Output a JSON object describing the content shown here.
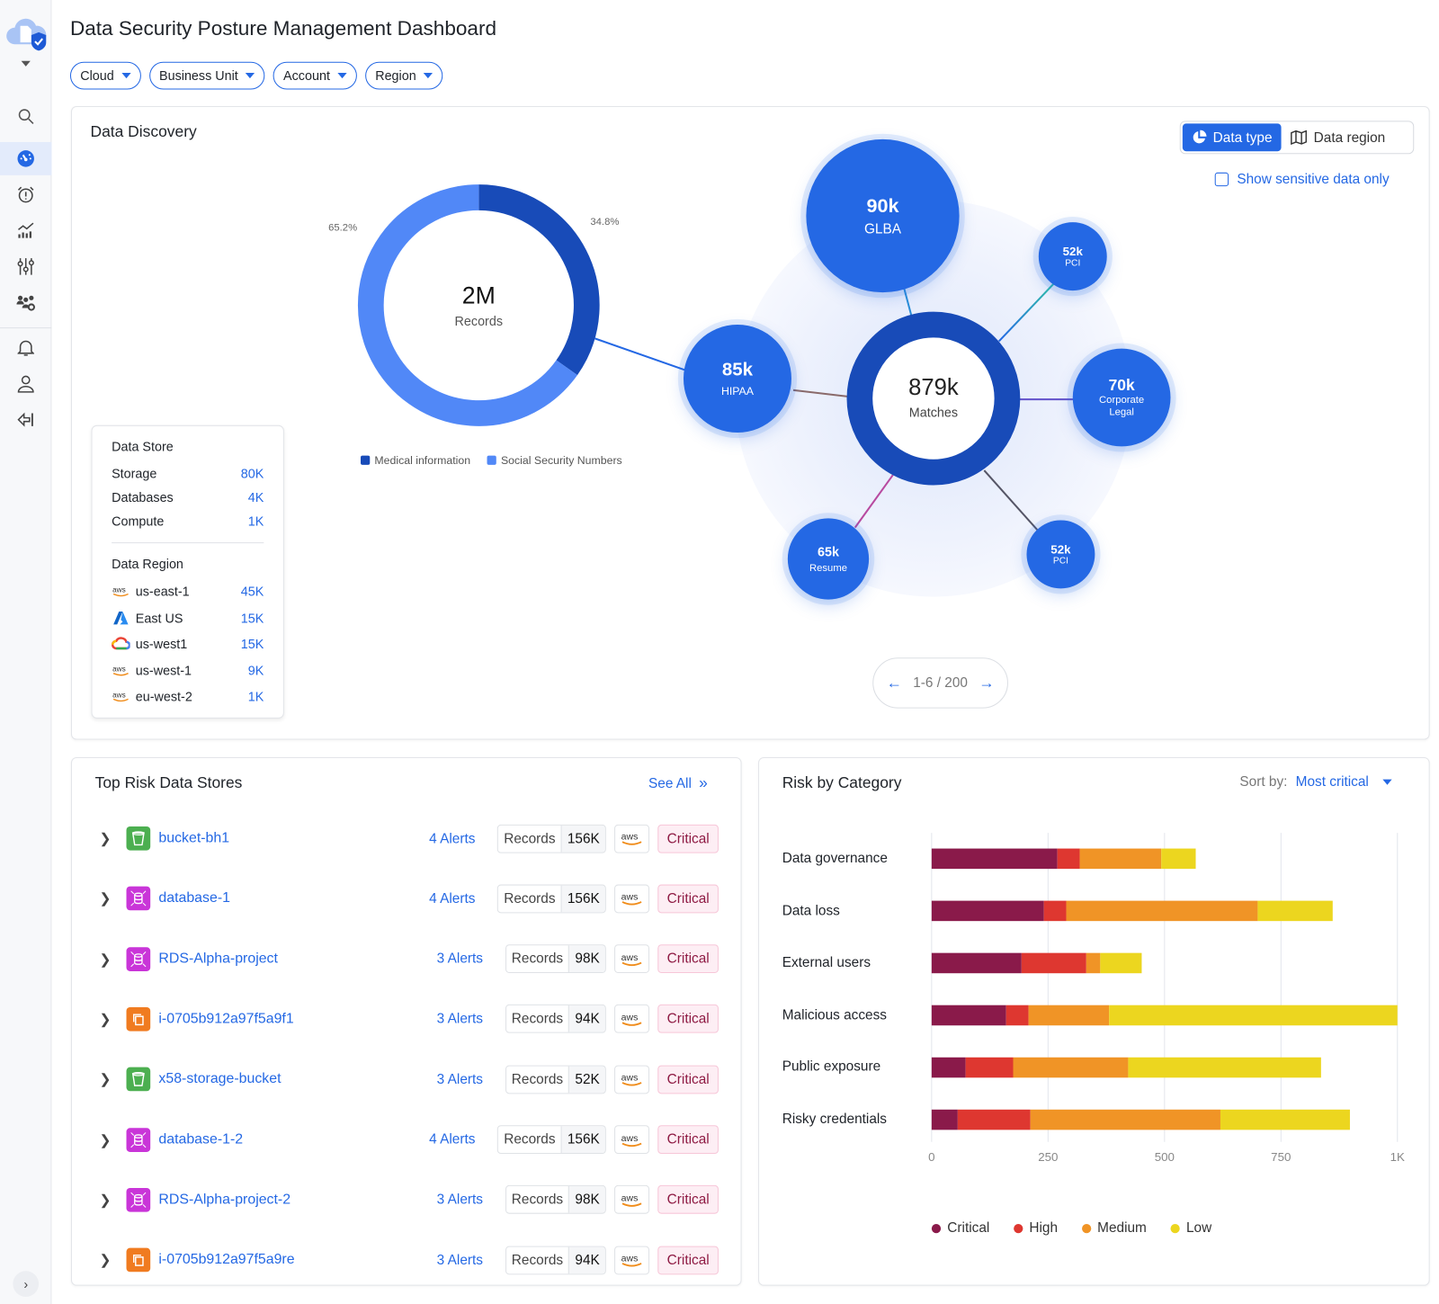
{
  "header": {
    "title": "Data Security Posture Management Dashboard"
  },
  "filters": [
    "Cloud",
    "Business Unit",
    "Account",
    "Region"
  ],
  "sidebar": {
    "icons": [
      "logo-icon",
      "search-icon",
      "dashboard-icon",
      "alarm-icon",
      "analytics-icon",
      "sliders-icon",
      "users-settings-icon",
      "bell-icon",
      "user-icon",
      "logout-icon"
    ],
    "active": "dashboard-icon"
  },
  "discovery": {
    "title": "Data Discovery",
    "toggle": {
      "data_type": "Data type",
      "data_region": "Data region",
      "selected": "Data type"
    },
    "sensitive_label": "Show sensitive data only",
    "sensitive_checked": false,
    "donut": {
      "value": "2M",
      "label": "Records",
      "slices": [
        {
          "name": "Medical information",
          "percent": 34.8,
          "percent_label": "34.8%",
          "color": "#184bb8"
        },
        {
          "name": "Social Security Numbers",
          "percent": 65.2,
          "percent_label": "65.2%",
          "color": "#5188f7"
        }
      ]
    },
    "center": {
      "value": "879k",
      "label": "Matches"
    },
    "bubbles": [
      {
        "value": "90k",
        "label": "GLBA"
      },
      {
        "value": "52k",
        "label": "PCI"
      },
      {
        "value": "85k",
        "label": "HIPAA"
      },
      {
        "value": "70k",
        "label": "Corporate Legal"
      },
      {
        "value": "65k",
        "label": "Resume"
      },
      {
        "value": "52k",
        "label": "PCI"
      }
    ],
    "pager": "1-6 / 200",
    "data_store": {
      "title": "Data Store",
      "items": [
        {
          "label": "Storage",
          "value": "80K"
        },
        {
          "label": "Databases",
          "value": "4K"
        },
        {
          "label": "Compute",
          "value": "1K"
        }
      ]
    },
    "data_region": {
      "title": "Data Region",
      "items": [
        {
          "provider": "aws",
          "label": "us-east-1",
          "value": "45K"
        },
        {
          "provider": "azure",
          "label": "East US",
          "value": "15K"
        },
        {
          "provider": "gcp",
          "label": "us-west1",
          "value": "15K"
        },
        {
          "provider": "aws",
          "label": "us-west-1",
          "value": "9K"
        },
        {
          "provider": "aws",
          "label": "eu-west-2",
          "value": "1K"
        }
      ]
    }
  },
  "top_risk": {
    "title": "Top Risk Data Stores",
    "see_all": "See All",
    "records_label": "Records",
    "provider_label": "aws",
    "rows": [
      {
        "type": "bucket",
        "name": "bucket-bh1",
        "alerts": "4 Alerts",
        "records": "156K",
        "severity": "Critical"
      },
      {
        "type": "database",
        "name": "database-1",
        "alerts": "4 Alerts",
        "records": "156K",
        "severity": "Critical"
      },
      {
        "type": "database",
        "name": "RDS-Alpha-project",
        "alerts": "3 Alerts",
        "records": "98K",
        "severity": "Critical"
      },
      {
        "type": "compute",
        "name": "i-0705b912a97f5a9f1",
        "alerts": "3 Alerts",
        "records": "94K",
        "severity": "Critical"
      },
      {
        "type": "bucket",
        "name": "x58-storage-bucket",
        "alerts": "3 Alerts",
        "records": "52K",
        "severity": "Critical"
      },
      {
        "type": "database",
        "name": "database-1-2",
        "alerts": "4 Alerts",
        "records": "156K",
        "severity": "Critical"
      },
      {
        "type": "database",
        "name": "RDS-Alpha-project-2",
        "alerts": "3 Alerts",
        "records": "98K",
        "severity": "Critical"
      },
      {
        "type": "compute",
        "name": "i-0705b912a97f5a9re",
        "alerts": "3 Alerts",
        "records": "94K",
        "severity": "Critical"
      }
    ]
  },
  "risk_category": {
    "title": "Risk by Category",
    "sort_label": "Sort by:",
    "sort_value": "Most critical"
  },
  "chart_data": {
    "type": "bar",
    "orientation": "horizontal",
    "stacked": true,
    "categories": [
      "Data governance",
      "Data loss",
      "External users",
      "Malicious access",
      "Public exposure",
      "Risky credentials"
    ],
    "series": [
      {
        "name": "Critical",
        "color": "#8a1a4a",
        "values": [
          270,
          241,
          193,
          160,
          73,
          56
        ]
      },
      {
        "name": "High",
        "color": "#de3730",
        "values": [
          48,
          48,
          139,
          48,
          102,
          156
        ]
      },
      {
        "name": "Medium",
        "color": "#f09426",
        "values": [
          175,
          411,
          30,
          173,
          247,
          408
        ]
      },
      {
        "name": "Low",
        "color": "#ecd61f",
        "values": [
          74,
          161,
          89,
          619,
          414,
          278
        ]
      }
    ],
    "xlim": [
      0,
      1000
    ],
    "xticks": [
      "0",
      "250",
      "500",
      "750",
      "1K"
    ],
    "xtick_values": [
      0,
      250,
      500,
      750,
      1000
    ],
    "grid": true,
    "legend": "bottom"
  }
}
